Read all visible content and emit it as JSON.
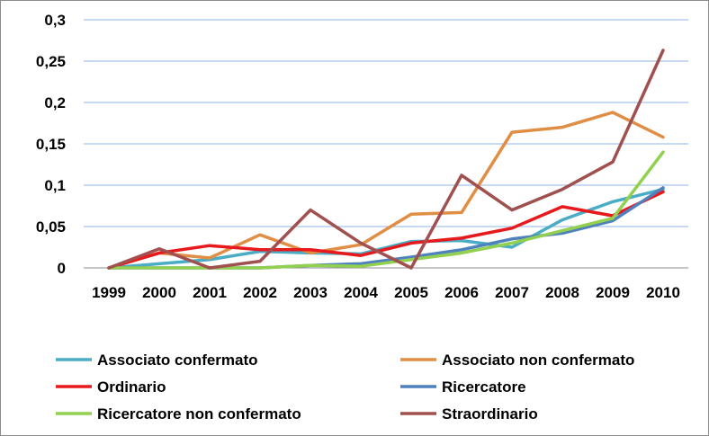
{
  "chart_data": {
    "type": "line",
    "x": [
      "1999",
      "2000",
      "2001",
      "2002",
      "2003",
      "2004",
      "2005",
      "2006",
      "2007",
      "2008",
      "2009",
      "2010"
    ],
    "y_ticks": [
      "0",
      "0,05",
      "0,1",
      "0,15",
      "0,2",
      "0,25",
      "0,3"
    ],
    "ylim": [
      0,
      0.3
    ],
    "grid": true,
    "legend_position": "bottom",
    "series": [
      {
        "name": "Associato confermato",
        "color": "#4BACC6",
        "values": [
          0,
          0.005,
          0.01,
          0.02,
          0.018,
          0.017,
          0.032,
          0.033,
          0.025,
          0.058,
          0.08,
          0.095
        ]
      },
      {
        "name": "Associato non confermato",
        "color": "#E08E44",
        "values": [
          0,
          0.018,
          0.012,
          0.04,
          0.018,
          0.028,
          0.065,
          0.067,
          0.164,
          0.17,
          0.188,
          0.158
        ]
      },
      {
        "name": "Ordinario",
        "color": "#E8191C",
        "values": [
          0,
          0.018,
          0.027,
          0.022,
          0.022,
          0.015,
          0.03,
          0.036,
          0.048,
          0.074,
          0.063,
          0.092
        ]
      },
      {
        "name": "Ricercatore",
        "color": "#4F81BD",
        "values": [
          0,
          0,
          0,
          0,
          0.003,
          0.005,
          0.013,
          0.022,
          0.035,
          0.042,
          0.057,
          0.097
        ]
      },
      {
        "name": "Ricercatore non confermato",
        "color": "#92D050",
        "values": [
          0,
          0,
          0,
          0,
          0.003,
          0.002,
          0.01,
          0.018,
          0.03,
          0.045,
          0.06,
          0.14
        ]
      },
      {
        "name": "Straordinario",
        "color": "#A0504E",
        "values": [
          0,
          0.023,
          0,
          0.008,
          0.07,
          0.03,
          0,
          0.112,
          0.07,
          0.095,
          0.128,
          0.263
        ]
      }
    ]
  }
}
